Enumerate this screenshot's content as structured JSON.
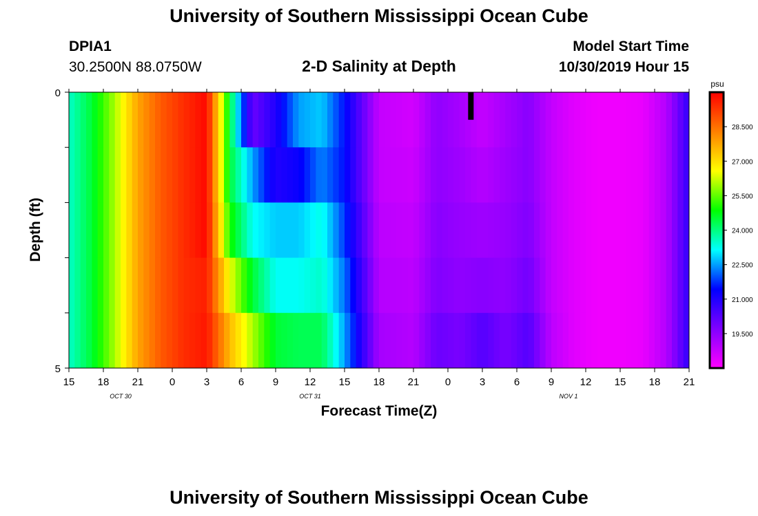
{
  "header": {
    "title": "University of Southern Mississippi Ocean Cube",
    "station_id": "DPIA1",
    "coordinates": "30.2500N 88.0750W",
    "plot_title": "2-D Salinity at Depth",
    "model_start_label": "Model Start Time",
    "model_start_time": "10/30/2019 Hour 15"
  },
  "footer": {
    "title": "University of Southern Mississippi Ocean Cube"
  },
  "chart_data": {
    "type": "heatmap",
    "title": "2-D Salinity at Depth",
    "xlabel": "Forecast Time(Z)",
    "ylabel": "Depth (ft)",
    "y_tick_labels": [
      "0",
      "5"
    ],
    "ylim": [
      0,
      5
    ],
    "y_inverted": true,
    "x_tick_labels": [
      "15",
      "18",
      "21",
      "0",
      "3",
      "6",
      "9",
      "12",
      "15",
      "18",
      "21",
      "0",
      "3",
      "6",
      "9",
      "12",
      "15",
      "18",
      "21"
    ],
    "date_labels": [
      {
        "text": "OCT 30",
        "at_hour": 4.5
      },
      {
        "text": "OCT 31",
        "at_hour": 21
      },
      {
        "text": "NOV 1",
        "at_hour": 43.5
      }
    ],
    "x_range_hours": [
      0,
      54
    ],
    "colorbar": {
      "unit": "psu",
      "ticks": [
        "28.500",
        "27.000",
        "25.500",
        "24.000",
        "22.500",
        "21.000",
        "19.500"
      ],
      "range": [
        18.0,
        30.0
      ],
      "colors": [
        "#ff00ff",
        "#8000ff",
        "#0000ff",
        "#00ffff",
        "#00ff00",
        "#ffff00",
        "#ff8000",
        "#ff0000"
      ]
    },
    "missing_marker": {
      "hour": 35,
      "depth_from": 0,
      "depth_to": 0.5
    },
    "depth_levels": 5,
    "time_keypoints_hours": [
      0,
      2,
      4,
      6,
      8,
      10,
      12,
      14,
      16,
      18,
      20,
      22,
      24,
      27,
      30,
      32,
      34,
      36,
      38,
      40,
      42,
      44,
      46,
      48,
      50,
      52,
      54
    ],
    "salinity_rows": [
      [
        23.5,
        24.5,
        26.0,
        27.8,
        28.8,
        29.4,
        29.9,
        24.5,
        20.0,
        21.0,
        22.5,
        22.8,
        21.5,
        18.8,
        18.6,
        19.5,
        19.2,
        18.8,
        19.2,
        19.6,
        18.8,
        18.4,
        18.2,
        18.2,
        18.3,
        19.0,
        20.8
      ],
      [
        23.5,
        24.5,
        26.0,
        27.8,
        28.8,
        29.4,
        29.9,
        24.5,
        22.5,
        21.0,
        21.3,
        22.3,
        21.5,
        18.8,
        18.7,
        19.5,
        19.3,
        19.0,
        19.3,
        19.6,
        18.8,
        18.4,
        18.2,
        18.2,
        18.3,
        19.0,
        20.8
      ],
      [
        23.5,
        24.5,
        26.0,
        27.8,
        28.8,
        29.4,
        29.9,
        25.0,
        23.2,
        22.8,
        22.8,
        23.3,
        21.8,
        18.9,
        18.8,
        19.6,
        19.4,
        19.3,
        19.4,
        19.7,
        18.8,
        18.4,
        18.2,
        18.2,
        18.3,
        19.0,
        20.8
      ],
      [
        23.5,
        24.5,
        26.0,
        27.8,
        28.8,
        29.4,
        29.6,
        26.5,
        24.5,
        23.2,
        23.2,
        23.5,
        22.2,
        19.0,
        18.9,
        19.7,
        19.5,
        19.6,
        19.5,
        19.9,
        18.8,
        18.4,
        18.2,
        18.2,
        18.3,
        19.0,
        20.8
      ],
      [
        23.5,
        24.5,
        26.0,
        27.8,
        28.8,
        29.4,
        29.7,
        27.5,
        26.0,
        24.5,
        24.3,
        24.3,
        22.5,
        19.2,
        19.0,
        20.0,
        19.8,
        20.3,
        19.8,
        20.3,
        18.9,
        18.4,
        18.2,
        18.2,
        18.3,
        19.0,
        20.8
      ]
    ]
  }
}
